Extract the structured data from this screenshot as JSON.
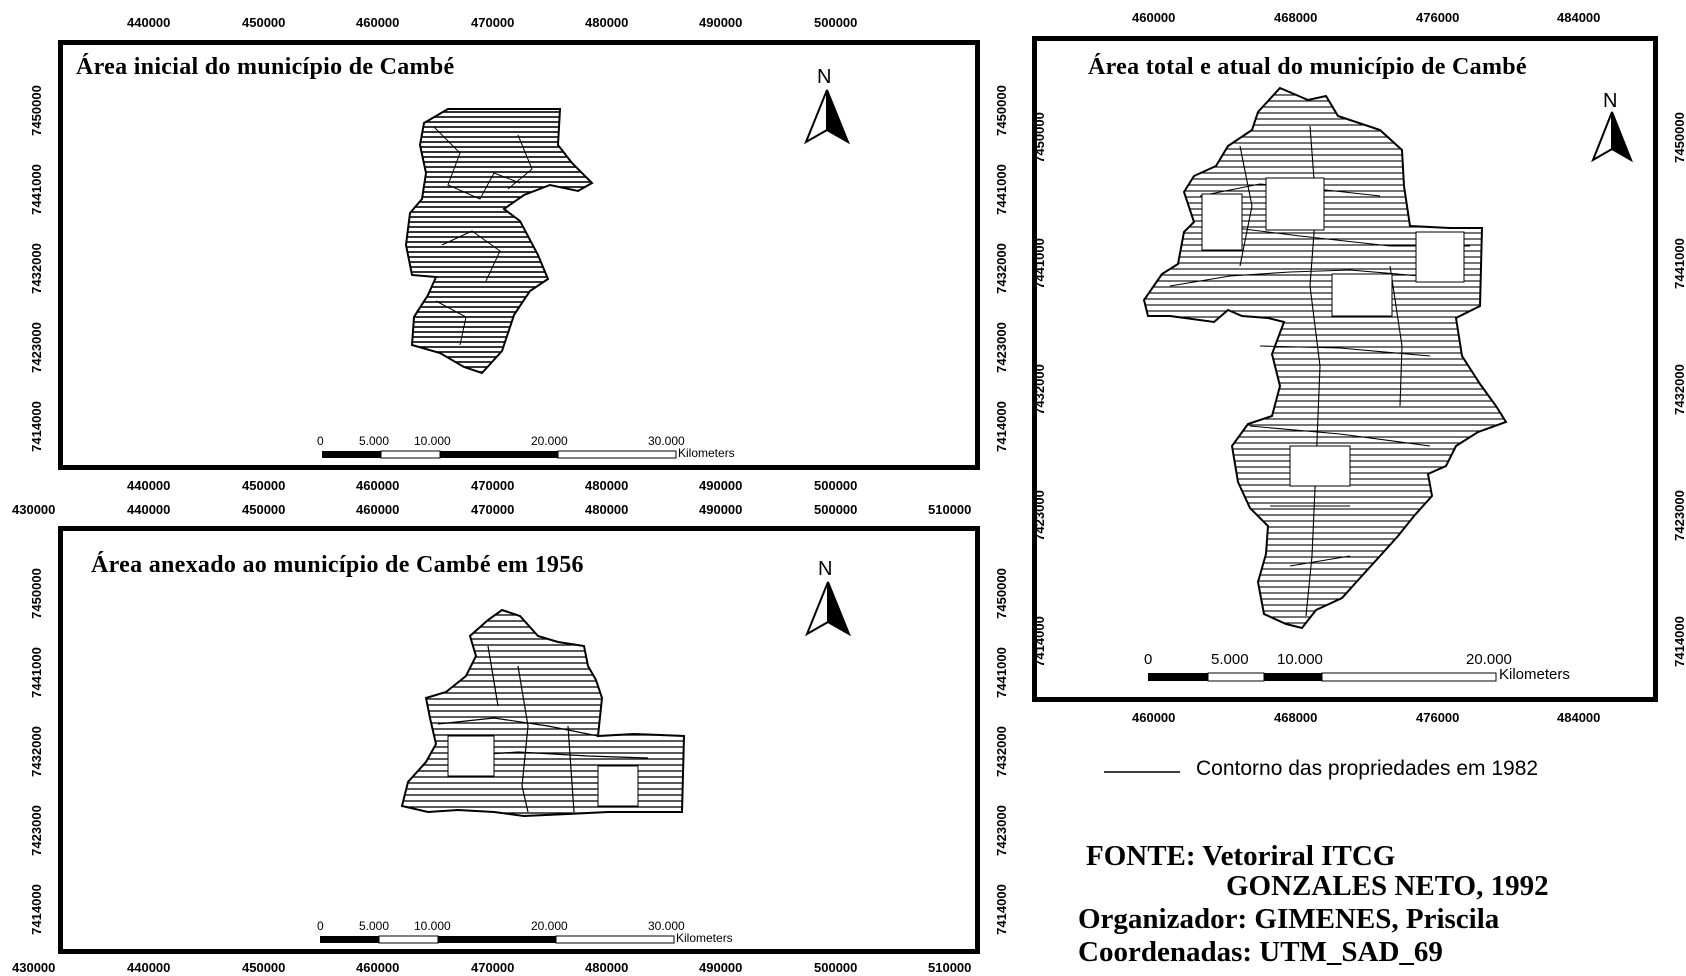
{
  "map1": {
    "title": "Área inicial do município de Cambé",
    "x_ticks_top": [
      "440000",
      "450000",
      "460000",
      "470000",
      "480000",
      "490000",
      "500000"
    ],
    "x_ticks_bottom": [
      "440000",
      "450000",
      "460000",
      "470000",
      "480000",
      "490000",
      "500000"
    ],
    "y_ticks": [
      "7450000",
      "7441000",
      "7432000",
      "7423000",
      "7414000"
    ],
    "north": "N",
    "scalebar": {
      "labels": [
        "0",
        "5.000",
        "10.000",
        "20.000",
        "30.000"
      ],
      "unit": "Kilometers"
    }
  },
  "map2": {
    "title": "Área anexado ao município de Cambé em 1956",
    "x_ticks_top": [
      "430000",
      "440000",
      "450000",
      "460000",
      "470000",
      "480000",
      "490000",
      "500000",
      "510000"
    ],
    "x_ticks_bottom": [
      "430000",
      "440000",
      "450000",
      "460000",
      "470000",
      "480000",
      "490000",
      "500000",
      "510000"
    ],
    "y_ticks": [
      "7450000",
      "7441000",
      "7432000",
      "7423000",
      "7414000"
    ],
    "north": "N",
    "scalebar": {
      "labels": [
        "0",
        "5.000",
        "10.000",
        "20.000",
        "30.000"
      ],
      "unit": "Kilometers"
    }
  },
  "map3": {
    "title": "Área total e atual do município de Cambé",
    "x_ticks_top": [
      "460000",
      "468000",
      "476000",
      "484000"
    ],
    "x_ticks_bottom": [
      "460000",
      "468000",
      "476000",
      "484000"
    ],
    "y_ticks": [
      "7450000",
      "7441000",
      "7432000",
      "7423000",
      "7414000"
    ],
    "north": "N",
    "scalebar": {
      "labels": [
        "0",
        "5.000",
        "10.000",
        "20.000"
      ],
      "unit": "Kilometers"
    }
  },
  "legend": {
    "label": "Contorno das propriedades em 1982"
  },
  "credits": {
    "line1": "FONTE: Vetoriral ITCG",
    "line2": "GONZALES NETO, 1992",
    "line3": "Organizador: GIMENES, Priscila",
    "line4": "Coordenadas: UTM_SAD_69"
  },
  "colors": {
    "ink": "#000000",
    "paper": "#ffffff"
  }
}
